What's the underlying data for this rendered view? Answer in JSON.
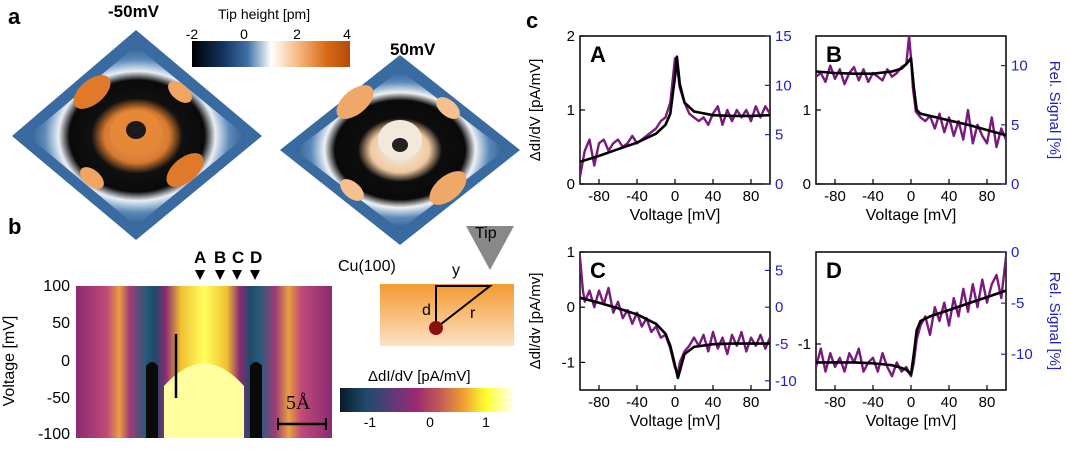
{
  "panels": {
    "a": {
      "label": "a",
      "left_bias": "-50mV",
      "right_bias": "50mV",
      "colorbar_title": "Tip height [pm]",
      "colorbar_ticks": [
        "-2",
        "0",
        "2",
        "4"
      ],
      "colorbar_colors": [
        "#000000",
        "#1f4e8a",
        "#ffffff",
        "#f3a35a",
        "#c85a0c"
      ]
    },
    "b": {
      "label": "b",
      "ylabel": "Voltage [mV]",
      "yticks": [
        "100",
        "50",
        "0",
        "-50",
        "-100"
      ],
      "markers": [
        "A",
        "B",
        "C",
        "D"
      ],
      "scalebar": "5Å",
      "schematic": {
        "surface": "Cu(100)",
        "tip": "Tip",
        "d": "d",
        "r": "r",
        "y": "y"
      },
      "colorbar_title": "ΔdI/dV [pA/mV]",
      "colorbar_ticks": [
        "-1",
        "0",
        "1"
      ],
      "colorbar_colors": [
        "#0a2a4a",
        "#2a5a7a",
        "#7a2a6e",
        "#b03a78",
        "#e8a040",
        "#ffff30",
        "#ffffe0"
      ]
    },
    "c": {
      "label": "c"
    }
  },
  "chart_data": [
    {
      "type": "line",
      "panel_letter": "A",
      "xlabel": "Voltage [mV]",
      "ylabel_left": "ΔdI/dV [pA/mV]",
      "ylabel_right": "",
      "xlim": [
        -100,
        100
      ],
      "ylim_left": [
        0,
        2
      ],
      "ylim_right": [
        0,
        15
      ],
      "xticks": [
        -80,
        -40,
        0,
        40,
        80
      ],
      "yticks_left": [
        0,
        1,
        2
      ],
      "yticks_right": [
        0,
        5,
        10,
        15
      ],
      "series": [
        {
          "color": "#7a1a7e",
          "axis": "left",
          "x": [
            -100,
            -95,
            -90,
            -85,
            -80,
            -75,
            -70,
            -65,
            -60,
            -55,
            -50,
            -45,
            -40,
            -35,
            -30,
            -25,
            -20,
            -15,
            -10,
            -5,
            0,
            2,
            5,
            10,
            15,
            20,
            25,
            30,
            35,
            40,
            45,
            50,
            55,
            60,
            65,
            70,
            75,
            80,
            85,
            90,
            95,
            100
          ],
          "y": [
            0.1,
            0.45,
            0.6,
            0.25,
            0.55,
            0.6,
            0.45,
            0.55,
            0.6,
            0.5,
            0.55,
            0.65,
            0.55,
            0.6,
            0.65,
            0.7,
            0.75,
            0.85,
            0.9,
            1.1,
            1.7,
            1.6,
            1.3,
            1.1,
            0.95,
            0.9,
            0.85,
            0.9,
            0.8,
            0.95,
            1.05,
            0.8,
            1.0,
            0.85,
            1.0,
            0.9,
            1.0,
            0.85,
            1.05,
            0.9,
            1.05,
            0.95
          ]
        },
        {
          "color": "#000000",
          "axis": "left",
          "x": [
            -100,
            -80,
            -60,
            -40,
            -20,
            -10,
            -5,
            0,
            2,
            5,
            10,
            20,
            40,
            60,
            80,
            100
          ],
          "y": [
            0.3,
            0.38,
            0.47,
            0.56,
            0.68,
            0.8,
            0.95,
            1.45,
            1.72,
            1.35,
            1.1,
            0.98,
            0.93,
            0.92,
            0.92,
            0.93
          ]
        }
      ]
    },
    {
      "type": "line",
      "panel_letter": "B",
      "xlabel": "Voltage [mV]",
      "ylabel_left": "",
      "ylabel_right": "Rel. Signal [%]",
      "xlim": [
        -100,
        100
      ],
      "ylim_left": [
        0,
        2
      ],
      "ylim_right": [
        0,
        12.5
      ],
      "xticks": [
        -80,
        -40,
        0,
        40,
        80
      ],
      "yticks_left": [
        0,
        1
      ],
      "yticks_right": [
        0,
        5,
        10
      ],
      "series": [
        {
          "color": "#7a1a7e",
          "axis": "left",
          "x": [
            -100,
            -95,
            -90,
            -85,
            -80,
            -75,
            -70,
            -65,
            -60,
            -55,
            -50,
            -45,
            -40,
            -35,
            -30,
            -25,
            -20,
            -15,
            -10,
            -5,
            -2,
            0,
            2,
            5,
            10,
            15,
            20,
            25,
            30,
            35,
            40,
            45,
            50,
            55,
            60,
            65,
            70,
            75,
            80,
            85,
            90,
            95,
            100
          ],
          "y": [
            1.45,
            1.5,
            1.38,
            1.6,
            1.42,
            1.55,
            1.35,
            1.5,
            1.58,
            1.4,
            1.55,
            1.38,
            1.5,
            1.45,
            1.4,
            1.55,
            1.45,
            1.5,
            1.58,
            1.62,
            2.0,
            1.7,
            1.3,
            0.98,
            0.9,
            0.85,
            0.92,
            0.75,
            0.95,
            0.7,
            0.9,
            0.65,
            0.85,
            0.6,
            1.0,
            0.55,
            0.8,
            0.65,
            0.55,
            0.9,
            0.5,
            0.75,
            0.6
          ]
        },
        {
          "color": "#000000",
          "axis": "left",
          "x": [
            -100,
            -80,
            -60,
            -40,
            -20,
            -10,
            -5,
            0,
            3,
            6,
            10,
            20,
            40,
            60,
            80,
            100
          ],
          "y": [
            1.52,
            1.5,
            1.49,
            1.49,
            1.52,
            1.56,
            1.62,
            1.7,
            1.3,
            1.0,
            0.95,
            0.92,
            0.86,
            0.8,
            0.73,
            0.66
          ]
        }
      ]
    },
    {
      "type": "line",
      "panel_letter": "C",
      "xlabel": "Voltage [mV]",
      "ylabel_left": "Δdl/dv [pA/mv]",
      "ylabel_right": "",
      "xlim": [
        -100,
        100
      ],
      "ylim_left": [
        -1.5,
        1
      ],
      "ylim_right": [
        -11.25,
        7.5
      ],
      "xticks": [
        -80,
        -40,
        0,
        40,
        80
      ],
      "yticks_left": [
        -1,
        0,
        1
      ],
      "yticks_right": [
        -10,
        -5,
        0,
        5
      ],
      "series": [
        {
          "color": "#7a1a7e",
          "axis": "left",
          "x": [
            -100,
            -97,
            -95,
            -90,
            -85,
            -80,
            -75,
            -70,
            -65,
            -60,
            -55,
            -50,
            -45,
            -40,
            -35,
            -30,
            -25,
            -20,
            -15,
            -10,
            -5,
            0,
            3,
            5,
            10,
            15,
            20,
            25,
            30,
            35,
            40,
            45,
            50,
            55,
            60,
            65,
            70,
            75,
            80,
            85,
            90,
            95,
            100
          ],
          "y": [
            0.9,
            0.3,
            0.1,
            0.3,
            0.0,
            0.3,
            0.05,
            0.35,
            -0.1,
            0.1,
            -0.2,
            -0.05,
            -0.3,
            -0.1,
            -0.35,
            -0.2,
            -0.45,
            -0.35,
            -0.55,
            -0.5,
            -0.75,
            -1.1,
            -1.2,
            -1.0,
            -0.8,
            -0.7,
            -0.55,
            -0.7,
            -0.5,
            -0.8,
            -0.45,
            -0.75,
            -0.55,
            -0.85,
            -0.5,
            -0.7,
            -0.45,
            -0.8,
            -0.55,
            -0.7,
            -0.5,
            -0.75,
            -0.55
          ]
        },
        {
          "color": "#000000",
          "axis": "left",
          "x": [
            -100,
            -80,
            -60,
            -40,
            -20,
            -10,
            -5,
            0,
            3,
            6,
            10,
            20,
            40,
            60,
            80,
            100
          ],
          "y": [
            0.17,
            0.08,
            -0.02,
            -0.13,
            -0.3,
            -0.48,
            -0.7,
            -1.05,
            -1.28,
            -1.1,
            -0.85,
            -0.72,
            -0.67,
            -0.66,
            -0.66,
            -0.66
          ]
        }
      ]
    },
    {
      "type": "line",
      "panel_letter": "D",
      "xlabel": "Voltage [mV]",
      "ylabel_left": "",
      "ylabel_right": "Rel. Signal [%]",
      "xlim": [
        -100,
        100
      ],
      "ylim_left": [
        -1.5,
        0
      ],
      "ylim_right": [
        -13.5,
        0
      ],
      "xticks": [
        -80,
        -40,
        0,
        40,
        80
      ],
      "yticks_left": [
        -1
      ],
      "yticks_right": [
        -10,
        -5,
        0
      ],
      "series": [
        {
          "color": "#7a1a7e",
          "axis": "left",
          "x": [
            -100,
            -95,
            -90,
            -85,
            -80,
            -75,
            -70,
            -65,
            -60,
            -55,
            -50,
            -45,
            -40,
            -35,
            -30,
            -25,
            -20,
            -15,
            -10,
            -5,
            0,
            3,
            6,
            10,
            15,
            20,
            25,
            30,
            35,
            40,
            45,
            50,
            55,
            60,
            65,
            70,
            75,
            80,
            85,
            90,
            95,
            100
          ],
          "y": [
            -1.25,
            -1.05,
            -1.3,
            -1.1,
            -1.25,
            -1.15,
            -1.3,
            -1.1,
            -1.2,
            -1.05,
            -1.3,
            -1.2,
            -1.15,
            -1.3,
            -1.1,
            -1.25,
            -1.35,
            -1.2,
            -1.3,
            -1.25,
            -1.35,
            -1.2,
            -0.95,
            -0.8,
            -0.7,
            -0.9,
            -0.6,
            -0.75,
            -0.55,
            -0.8,
            -0.5,
            -0.7,
            -0.4,
            -0.65,
            -0.35,
            -0.6,
            -0.3,
            -0.55,
            -0.35,
            -0.25,
            -0.5,
            -0.05
          ]
        },
        {
          "color": "#000000",
          "axis": "left",
          "x": [
            -100,
            -80,
            -60,
            -40,
            -20,
            -10,
            -5,
            0,
            3,
            6,
            10,
            20,
            40,
            60,
            80,
            100
          ],
          "y": [
            -1.2,
            -1.2,
            -1.2,
            -1.21,
            -1.23,
            -1.26,
            -1.28,
            -1.33,
            -1.1,
            -0.85,
            -0.75,
            -0.7,
            -0.63,
            -0.56,
            -0.49,
            -0.42
          ]
        }
      ]
    }
  ]
}
